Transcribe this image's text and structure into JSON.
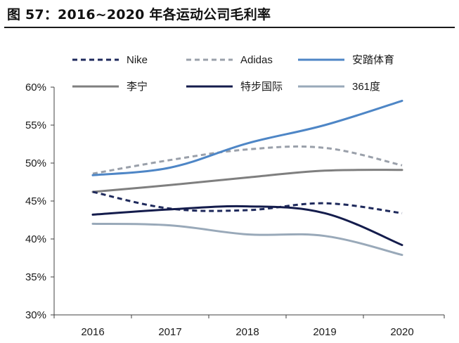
{
  "figure": {
    "title": "图 57：2016~2020 年各运动公司毛利率"
  },
  "chart_data": {
    "type": "line",
    "title": "图 57：2016~2020 年各运动公司毛利率",
    "xlabel": "",
    "ylabel": "",
    "categories": [
      "2016",
      "2017",
      "2018",
      "2019",
      "2020"
    ],
    "ylim": [
      30,
      60
    ],
    "yticks": [
      30,
      35,
      40,
      45,
      50,
      55,
      60
    ],
    "ytick_labels": [
      "30%",
      "35%",
      "40%",
      "45%",
      "50%",
      "55%",
      "60%"
    ],
    "grid": false,
    "legend_position": "top",
    "series": [
      {
        "name": "Nike",
        "values": [
          46.2,
          44.0,
          43.8,
          44.7,
          43.4
        ],
        "color": "#1f2a5c",
        "style": "dashed"
      },
      {
        "name": "Adidas",
        "values": [
          48.6,
          50.4,
          51.8,
          52.0,
          49.7
        ],
        "color": "#9aa0aa",
        "style": "dashed"
      },
      {
        "name": "安踏体育",
        "values": [
          48.4,
          49.4,
          52.6,
          55.0,
          58.2
        ],
        "color": "#4e86c6",
        "style": "solid"
      },
      {
        "name": "李宁",
        "values": [
          46.2,
          47.1,
          48.1,
          49.0,
          49.1
        ],
        "color": "#7f7f7f",
        "style": "solid"
      },
      {
        "name": "特步国际",
        "values": [
          43.2,
          43.9,
          44.3,
          43.4,
          39.2
        ],
        "color": "#141c4c",
        "style": "solid"
      },
      {
        "name": "361度",
        "values": [
          42.0,
          41.8,
          40.6,
          40.4,
          37.9
        ],
        "color": "#99a9b9",
        "style": "solid"
      }
    ]
  }
}
